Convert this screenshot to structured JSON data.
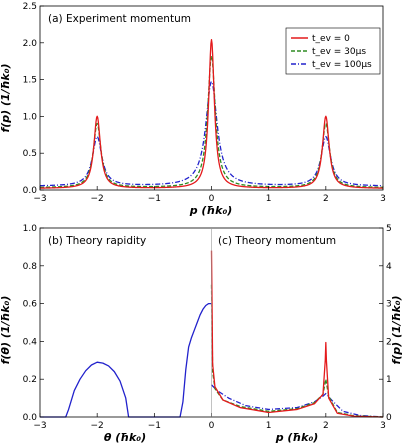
{
  "colors": {
    "red": "#e41a1c",
    "green": "#2e8b22",
    "blue": "#2222cc",
    "axis": "#000000"
  },
  "chart_data": [
    {
      "type": "line",
      "title": "(a) Experiment momentum",
      "xlabel": "p (ħk₀)",
      "ylabel": "f(p) (1/ħk₀)",
      "xlim": [
        -3,
        3
      ],
      "ylim": [
        0,
        2.5
      ],
      "xticks": [
        "−3",
        "−2",
        "−1",
        "0",
        "1",
        "2",
        "3"
      ],
      "yticks": [
        "0.0",
        "0.5",
        "1.0",
        "1.5",
        "2.0",
        "2.5"
      ],
      "legend_position": "top-right",
      "legend": [
        "t_ev = 0",
        "t_ev = 30μs",
        "t_ev = 100μs"
      ],
      "series": [
        {
          "name": "t_ev = 0",
          "color": "#e41a1c",
          "dash": "solid",
          "peaks": [
            1.0,
            2.04,
            1.0
          ],
          "center_width": 0.06,
          "side_width": 0.07,
          "baseline": 0.02
        },
        {
          "name": "t_ev = 30μs",
          "color": "#2e8b22",
          "dash": "dashed",
          "peaks": [
            0.9,
            1.82,
            0.9
          ],
          "center_width": 0.08,
          "side_width": 0.08,
          "baseline": 0.03
        },
        {
          "name": "t_ev = 100μs",
          "color": "#2222cc",
          "dash": "dashdot",
          "peaks": [
            0.72,
            1.47,
            0.72
          ],
          "center_width": 0.12,
          "side_width": 0.1,
          "baseline": 0.05
        }
      ]
    },
    {
      "type": "line",
      "title": "(b) Theory rapidity",
      "xlabel": "θ (ħk₀)",
      "ylabel": "f(θ) (1/ħk₀)",
      "xlim": [
        -3,
        0
      ],
      "ylim": [
        0,
        1
      ],
      "xticks": [
        "−3",
        "−2",
        "−1",
        "0"
      ],
      "yticks": [
        "0.0",
        "0.2",
        "0.4",
        "0.6",
        "0.8",
        "1.0"
      ],
      "series": [
        {
          "name": "rapidity",
          "color": "#2222cc",
          "dash": "solid",
          "points": [
            [
              -3.0,
              0.0
            ],
            [
              -2.55,
              0.0
            ],
            [
              -2.5,
              0.04
            ],
            [
              -2.4,
              0.14
            ],
            [
              -2.3,
              0.2
            ],
            [
              -2.2,
              0.245
            ],
            [
              -2.1,
              0.275
            ],
            [
              -2.0,
              0.29
            ],
            [
              -1.9,
              0.285
            ],
            [
              -1.8,
              0.27
            ],
            [
              -1.7,
              0.24
            ],
            [
              -1.6,
              0.19
            ],
            [
              -1.5,
              0.1
            ],
            [
              -1.45,
              0.0
            ],
            [
              -0.55,
              0.0
            ],
            [
              -0.5,
              0.08
            ],
            [
              -0.45,
              0.25
            ],
            [
              -0.4,
              0.37
            ],
            [
              -0.35,
              0.42
            ],
            [
              -0.3,
              0.46
            ],
            [
              -0.25,
              0.5
            ],
            [
              -0.2,
              0.54
            ],
            [
              -0.15,
              0.57
            ],
            [
              -0.1,
              0.59
            ],
            [
              -0.05,
              0.6
            ],
            [
              0.0,
              0.6
            ]
          ]
        }
      ]
    },
    {
      "type": "line",
      "title": "(c) Theory momentum",
      "xlabel": "p (ħk₀)",
      "ylabel": "f(p) (1/ħk₀)",
      "xlim": [
        0,
        3
      ],
      "ylim": [
        0,
        5
      ],
      "xticks": [
        "0",
        "1",
        "2",
        "3"
      ],
      "yticks": [
        "0",
        "1",
        "2",
        "3",
        "4",
        "5"
      ],
      "series": [
        {
          "name": "t_ev = 0",
          "color": "#e41a1c",
          "dash": "solid",
          "points": [
            [
              0.0,
              4.4
            ],
            [
              0.02,
              1.4
            ],
            [
              0.06,
              0.8
            ],
            [
              0.2,
              0.45
            ],
            [
              0.5,
              0.25
            ],
            [
              1.0,
              0.12
            ],
            [
              1.5,
              0.2
            ],
            [
              1.8,
              0.35
            ],
            [
              1.95,
              0.6
            ],
            [
              1.99,
              1.5
            ],
            [
              2.0,
              1.97
            ],
            [
              2.01,
              1.5
            ],
            [
              2.05,
              0.5
            ],
            [
              2.2,
              0.1
            ],
            [
              2.5,
              0.02
            ],
            [
              3.0,
              0.0
            ]
          ]
        },
        {
          "name": "t_ev = 30μs",
          "color": "#2e8b22",
          "dash": "dashed",
          "points": [
            [
              0.0,
              3.5
            ],
            [
              0.02,
              1.2
            ],
            [
              0.06,
              0.75
            ],
            [
              0.2,
              0.45
            ],
            [
              0.5,
              0.28
            ],
            [
              1.0,
              0.15
            ],
            [
              1.5,
              0.22
            ],
            [
              1.8,
              0.38
            ],
            [
              1.95,
              0.6
            ],
            [
              2.0,
              1.0
            ],
            [
              2.05,
              0.55
            ],
            [
              2.2,
              0.12
            ],
            [
              2.5,
              0.03
            ],
            [
              3.0,
              0.0
            ]
          ]
        },
        {
          "name": "t_ev = 100μs",
          "color": "#2222cc",
          "dash": "dashdot",
          "points": [
            [
              0.0,
              0.85
            ],
            [
              0.1,
              0.7
            ],
            [
              0.3,
              0.5
            ],
            [
              0.6,
              0.3
            ],
            [
              1.0,
              0.2
            ],
            [
              1.5,
              0.25
            ],
            [
              1.8,
              0.4
            ],
            [
              1.95,
              0.55
            ],
            [
              2.0,
              0.62
            ],
            [
              2.1,
              0.45
            ],
            [
              2.3,
              0.15
            ],
            [
              2.6,
              0.04
            ],
            [
              3.0,
              0.0
            ]
          ]
        }
      ]
    }
  ]
}
